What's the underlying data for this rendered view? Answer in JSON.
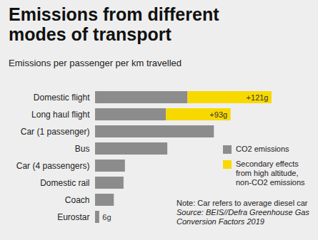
{
  "chart_data": {
    "type": "bar",
    "title": "Emissions from different modes of transport",
    "subtitle": "Emissions per passenger per km travelled",
    "orientation": "horizontal",
    "stacked": true,
    "data_labels": true,
    "tick_labels": "y",
    "legend": "bottom-right",
    "categories": [
      "Domestic flight",
      "Long haul flight",
      "Car (1 passenger)",
      "Bus",
      "Car (4 passengers)",
      "Domestic rail",
      "Coach",
      "Eurostar"
    ],
    "xlim": [
      0,
      254
    ],
    "series": [
      {
        "name": "CO2 emissions",
        "color": "#8c8c8c",
        "values": [
          133,
          102,
          171,
          104,
          43,
          41,
          27,
          6
        ],
        "value_labels": [
          null,
          null,
          null,
          null,
          null,
          null,
          null,
          "6g"
        ]
      },
      {
        "name": "Secondary effects from high altitude, non-CO2 emissions",
        "color": "#f7d900",
        "values": [
          121,
          93,
          null,
          null,
          null,
          null,
          null,
          null
        ],
        "value_labels": [
          "+121g",
          "+93g",
          null,
          null,
          null,
          null,
          null,
          null
        ]
      }
    ],
    "annotations": [
      "Note: Car refers to average diesel car",
      "Source: BEIS//Defra Greenhouse Gas Conversion Factors 2019"
    ]
  }
}
